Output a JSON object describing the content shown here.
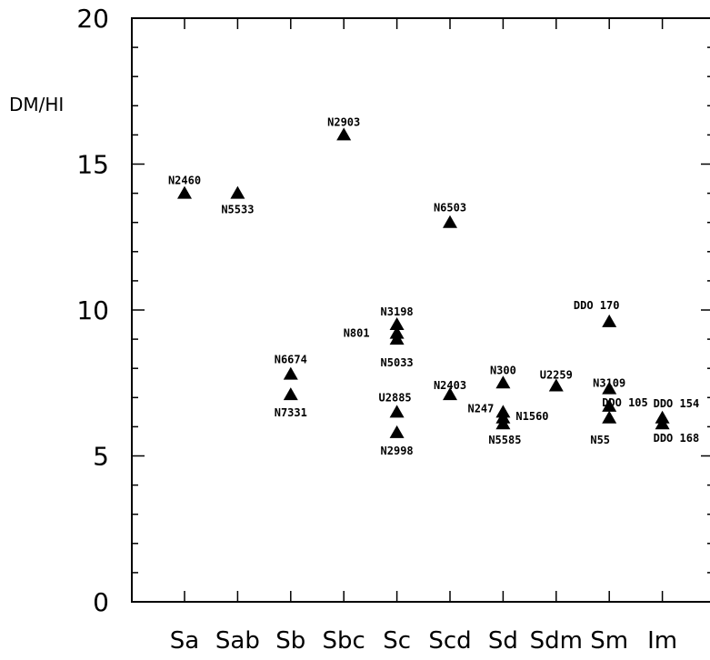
{
  "chart_data": {
    "type": "scatter",
    "ylabel": "DM/HI",
    "ylim": [
      0,
      20
    ],
    "y_ticks": [
      "0",
      "5",
      "10",
      "15",
      "20"
    ],
    "categories": [
      "Sa",
      "Sab",
      "Sb",
      "Sbc",
      "Sc",
      "Scd",
      "Sd",
      "Sdm",
      "Sm",
      "Im"
    ],
    "grid": false,
    "points": [
      {
        "label": "N2460",
        "x": "Sa",
        "y": 14.0
      },
      {
        "label": "N5533",
        "x": "Sab",
        "y": 14.0
      },
      {
        "label": "N6674",
        "x": "Sb",
        "y": 7.8
      },
      {
        "label": "N7331",
        "x": "Sb",
        "y": 7.1
      },
      {
        "label": "N2903",
        "x": "Sbc",
        "y": 16.0
      },
      {
        "label": "N3198",
        "x": "Sc",
        "y": 9.5
      },
      {
        "label": "N801",
        "x": "Sc",
        "y": 9.2
      },
      {
        "label": "N5033",
        "x": "Sc",
        "y": 9.0
      },
      {
        "label": "U2885",
        "x": "Sc",
        "y": 6.5
      },
      {
        "label": "N2998",
        "x": "Sc",
        "y": 5.8
      },
      {
        "label": "N6503",
        "x": "Scd",
        "y": 13.0
      },
      {
        "label": "N2403",
        "x": "Scd",
        "y": 7.1
      },
      {
        "label": "N300",
        "x": "Sd",
        "y": 7.5
      },
      {
        "label": "N247",
        "x": "Sd",
        "y": 6.5
      },
      {
        "label": "N1560",
        "x": "Sd",
        "y": 6.3
      },
      {
        "label": "N5585",
        "x": "Sd",
        "y": 6.1
      },
      {
        "label": "U2259",
        "x": "Sdm",
        "y": 7.4
      },
      {
        "label": "DDO 170",
        "x": "Sm",
        "y": 9.6
      },
      {
        "label": "N3109",
        "x": "Sm",
        "y": 7.3
      },
      {
        "label": "DDO 105",
        "x": "Sm",
        "y": 6.7
      },
      {
        "label": "N55",
        "x": "Sm",
        "y": 6.3
      },
      {
        "label": "DDO 154",
        "x": "Im",
        "y": 6.3
      },
      {
        "label": "DDO 168",
        "x": "Im",
        "y": 6.1
      }
    ]
  }
}
